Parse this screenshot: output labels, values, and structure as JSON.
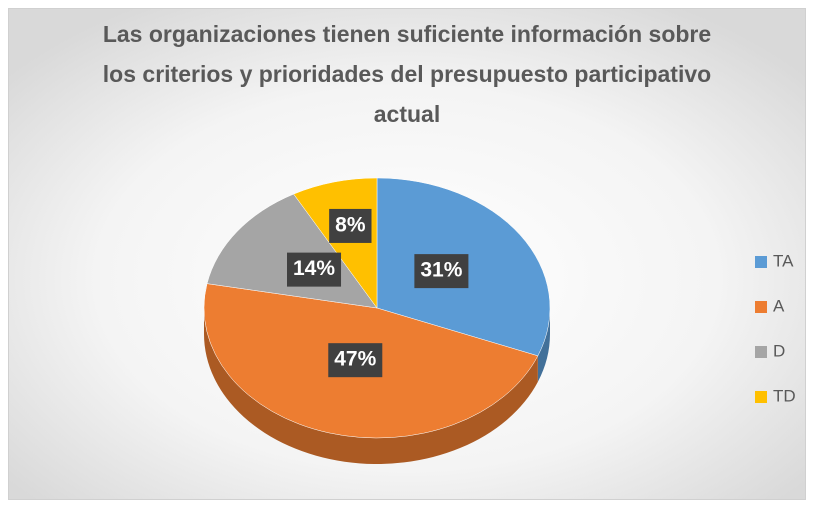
{
  "chart_data": {
    "type": "pie",
    "title": "Las organizaciones tienen suficiente información sobre los criterios y prioridades del presupuesto participativo actual",
    "categories": [
      "TA",
      "A",
      "D",
      "TD"
    ],
    "values": [
      31,
      47,
      14,
      8
    ],
    "value_labels": [
      "31%",
      "47%",
      "14%",
      "8%"
    ],
    "colors": [
      "#5b9bd5",
      "#ed7d31",
      "#a5a5a5",
      "#ffc000"
    ],
    "legend": "right"
  }
}
